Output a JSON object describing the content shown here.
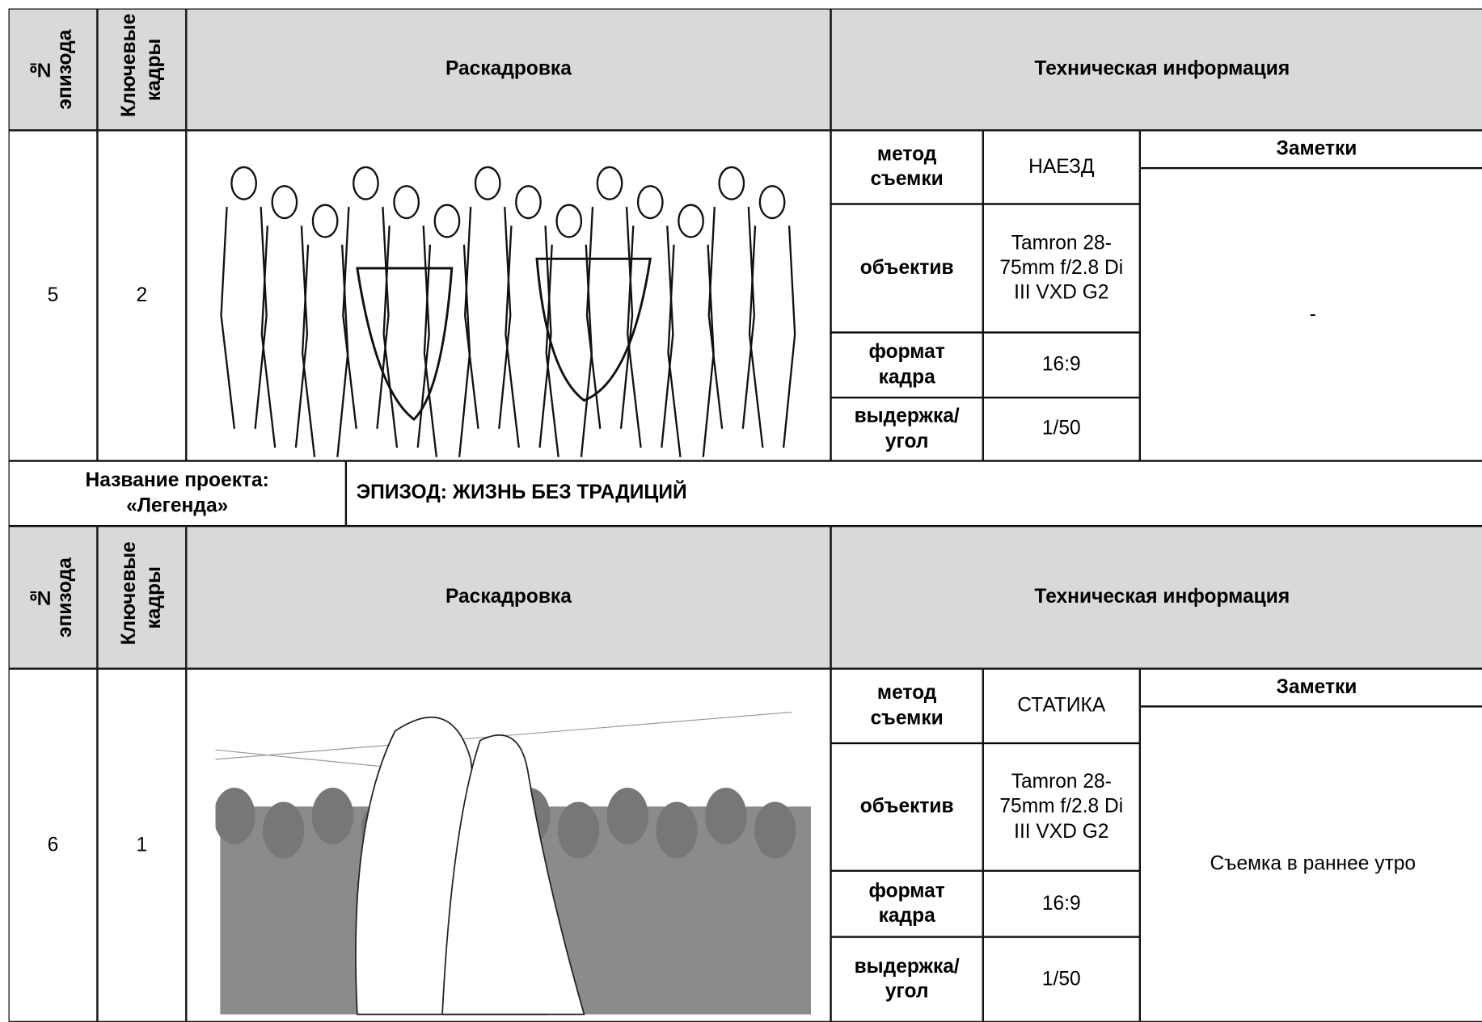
{
  "blocks": [
    {
      "header": {
        "episode": "№ эпизода",
        "keyframes": "Ключевые кадры",
        "storyboard": "Раскадровка",
        "tech": "Техническая информация"
      },
      "row": {
        "episode": "5",
        "keyframe": "2",
        "tech": [
          {
            "label": "метод съемки",
            "value": "НАЕЗД"
          },
          {
            "label": "объектив",
            "value": "Tamron 28-75mm f/2.8 Di III VXD G2"
          },
          {
            "label": "формат кадра",
            "value": "16:9"
          },
          {
            "label": "выдержка/ угол",
            "value": "1/50"
          }
        ],
        "notes_title": "Заметки",
        "notes": "-"
      }
    },
    {
      "header": {
        "episode": "№ эпизода",
        "keyframes": "Ключевые кадры",
        "storyboard": "Раскадровка",
        "tech": "Техническая информация"
      },
      "row": {
        "episode": "6",
        "keyframe": "1",
        "tech": [
          {
            "label": "метод съемки",
            "value": "СТАТИКА"
          },
          {
            "label": "объектив",
            "value": "Tamron 28-75mm f/2.8 Di III VXD G2"
          },
          {
            "label": "формат кадра",
            "value": "16:9"
          },
          {
            "label": "выдержка/ угол",
            "value": "1/50"
          }
        ],
        "notes_title": "Заметки",
        "notes": "Съемка в раннее утро"
      }
    }
  ],
  "project": {
    "label": "Название проекта: «Легенда»",
    "episode": "ЭПИЗОД: ЖИЗНЬ БЕЗ ТРАДИЦИЙ"
  }
}
